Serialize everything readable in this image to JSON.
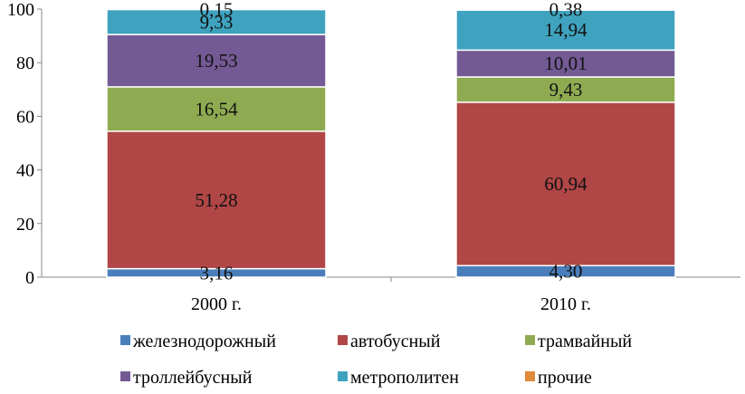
{
  "chart_data": {
    "type": "bar",
    "stacked": true,
    "categories": [
      "2000 г.",
      "2010 г."
    ],
    "ylim": [
      0,
      100
    ],
    "yticks": [
      "0",
      "20",
      "40",
      "60",
      "80",
      "100"
    ],
    "series": [
      {
        "name": "железнодорожный",
        "color": "#4a7ebb",
        "values": [
          3.16,
          4.3
        ],
        "labels": [
          "3,16",
          "4,30"
        ]
      },
      {
        "name": "автобусный",
        "color": "#b04646",
        "values": [
          51.28,
          60.94
        ],
        "labels": [
          "51,28",
          "60,94"
        ]
      },
      {
        "name": "трамвайный",
        "color": "#8fab52",
        "values": [
          16.54,
          9.43
        ],
        "labels": [
          "16,54",
          "9,43"
        ]
      },
      {
        "name": "троллейбусный",
        "color": "#735a94",
        "values": [
          19.53,
          10.01
        ],
        "labels": [
          "19,53",
          "10,01"
        ]
      },
      {
        "name": "метрополитен",
        "color": "#3fa3bf",
        "values": [
          9.33,
          14.94
        ],
        "labels": [
          "9,33",
          "14,94"
        ]
      },
      {
        "name": "прочие",
        "color": "#e08a3c",
        "values": [
          0.15,
          0.38
        ],
        "labels": [
          "0,15",
          "0,38"
        ]
      }
    ],
    "legend_position": "bottom",
    "grid": false
  }
}
